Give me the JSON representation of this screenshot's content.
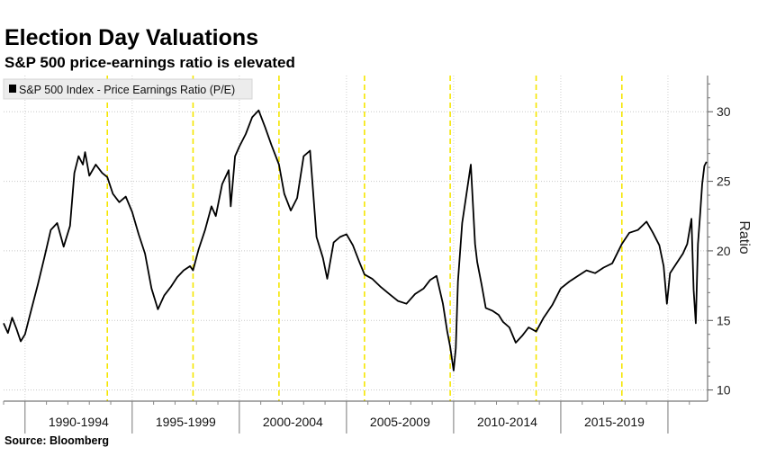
{
  "header": {
    "title": "Election Day Valuations",
    "subtitle": "S&P 500 price-earnings ratio is elevated"
  },
  "footer": {
    "source": "Source: Bloomberg"
  },
  "chart_data": {
    "type": "line",
    "title": "Election Day Valuations",
    "subtitle": "S&P 500 price-earnings ratio is elevated",
    "ylabel": "Ratio",
    "xlabel": "",
    "y_axis_side": "right",
    "ylim": [
      9.2,
      32.6
    ],
    "yticks": [
      10,
      15,
      20,
      25,
      30
    ],
    "xlim": [
      1988.0,
      2020.85
    ],
    "grid": true,
    "legend_position": "top-left",
    "legend": [
      "S&P 500 Index - Price Earnings Ratio (P/E)"
    ],
    "line_color": "#000000",
    "election_line_color": "#f5e600",
    "period_labels": [
      "1990-1994",
      "1995-1999",
      "2000-2004",
      "2005-2009",
      "2010-2014",
      "2015-2019"
    ],
    "period_boundaries": [
      1989.0,
      1994.0,
      1999.0,
      2004.0,
      2009.0,
      2014.0,
      2019.0
    ],
    "election_days": [
      1992.84,
      1996.84,
      2000.85,
      2004.84,
      2008.84,
      2012.85,
      2016.85
    ],
    "series": [
      {
        "name": "S&P 500 Index - Price Earnings Ratio (P/E)",
        "x": [
          1988.0,
          1988.2,
          1988.4,
          1988.6,
          1988.8,
          1989.0,
          1989.3,
          1989.6,
          1989.9,
          1990.2,
          1990.5,
          1990.8,
          1991.1,
          1991.3,
          1991.5,
          1991.7,
          1991.8,
          1992.0,
          1992.3,
          1992.6,
          1992.84,
          1993.1,
          1993.4,
          1993.7,
          1994.0,
          1994.3,
          1994.6,
          1994.9,
          1995.2,
          1995.5,
          1995.8,
          1996.1,
          1996.4,
          1996.7,
          1996.84,
          1997.1,
          1997.4,
          1997.7,
          1997.9,
          1998.2,
          1998.5,
          1998.6,
          1998.8,
          1999.0,
          1999.3,
          1999.6,
          1999.9,
          2000.2,
          2000.5,
          2000.85,
          2001.1,
          2001.4,
          2001.7,
          2002.0,
          2002.3,
          2002.6,
          2002.9,
          2003.1,
          2003.4,
          2003.7,
          2004.0,
          2004.3,
          2004.6,
          2004.84,
          2005.2,
          2005.6,
          2006.0,
          2006.4,
          2006.8,
          2007.2,
          2007.6,
          2007.9,
          2008.2,
          2008.5,
          2008.7,
          2008.84,
          2009.0,
          2009.1,
          2009.2,
          2009.4,
          2009.6,
          2009.8,
          2010.0,
          2010.1,
          2010.3,
          2010.5,
          2010.8,
          2011.1,
          2011.3,
          2011.6,
          2011.9,
          2012.2,
          2012.5,
          2012.85,
          2013.2,
          2013.6,
          2014.0,
          2014.4,
          2014.8,
          2015.2,
          2015.6,
          2016.0,
          2016.4,
          2016.85,
          2017.2,
          2017.6,
          2018.0,
          2018.3,
          2018.6,
          2018.8,
          2018.95,
          2019.1,
          2019.4,
          2019.7,
          2019.9,
          2020.1,
          2020.2,
          2020.3,
          2020.4,
          2020.5,
          2020.6,
          2020.7,
          2020.8
        ],
        "y": [
          14.8,
          14.1,
          15.2,
          14.4,
          13.5,
          14.0,
          15.8,
          17.6,
          19.5,
          21.5,
          22.0,
          20.3,
          21.8,
          25.6,
          26.8,
          26.2,
          27.1,
          25.4,
          26.2,
          25.6,
          25.3,
          24.1,
          23.5,
          23.9,
          22.8,
          21.2,
          19.8,
          17.3,
          15.8,
          16.8,
          17.4,
          18.1,
          18.6,
          18.9,
          18.6,
          20.1,
          21.5,
          23.2,
          22.5,
          24.8,
          25.8,
          23.2,
          26.8,
          27.5,
          28.4,
          29.6,
          30.1,
          28.9,
          27.6,
          26.2,
          24.1,
          22.9,
          23.8,
          26.8,
          27.2,
          21.0,
          19.5,
          18.0,
          20.6,
          21.0,
          21.2,
          20.4,
          19.2,
          18.3,
          18.0,
          17.4,
          16.9,
          16.4,
          16.2,
          16.9,
          17.3,
          17.9,
          18.2,
          16.2,
          14.2,
          13.1,
          11.4,
          13.0,
          17.8,
          22.0,
          24.1,
          26.2,
          20.5,
          19.2,
          17.6,
          15.9,
          15.7,
          15.4,
          14.9,
          14.5,
          13.4,
          13.9,
          14.5,
          14.2,
          15.2,
          16.1,
          17.3,
          17.8,
          18.2,
          18.6,
          18.4,
          18.8,
          19.1,
          20.5,
          21.3,
          21.5,
          22.1,
          21.3,
          20.4,
          18.9,
          16.2,
          18.4,
          19.1,
          19.8,
          20.5,
          22.3,
          17.2,
          14.8,
          20.5,
          22.6,
          24.8,
          26.1,
          26.4
        ]
      }
    ]
  }
}
